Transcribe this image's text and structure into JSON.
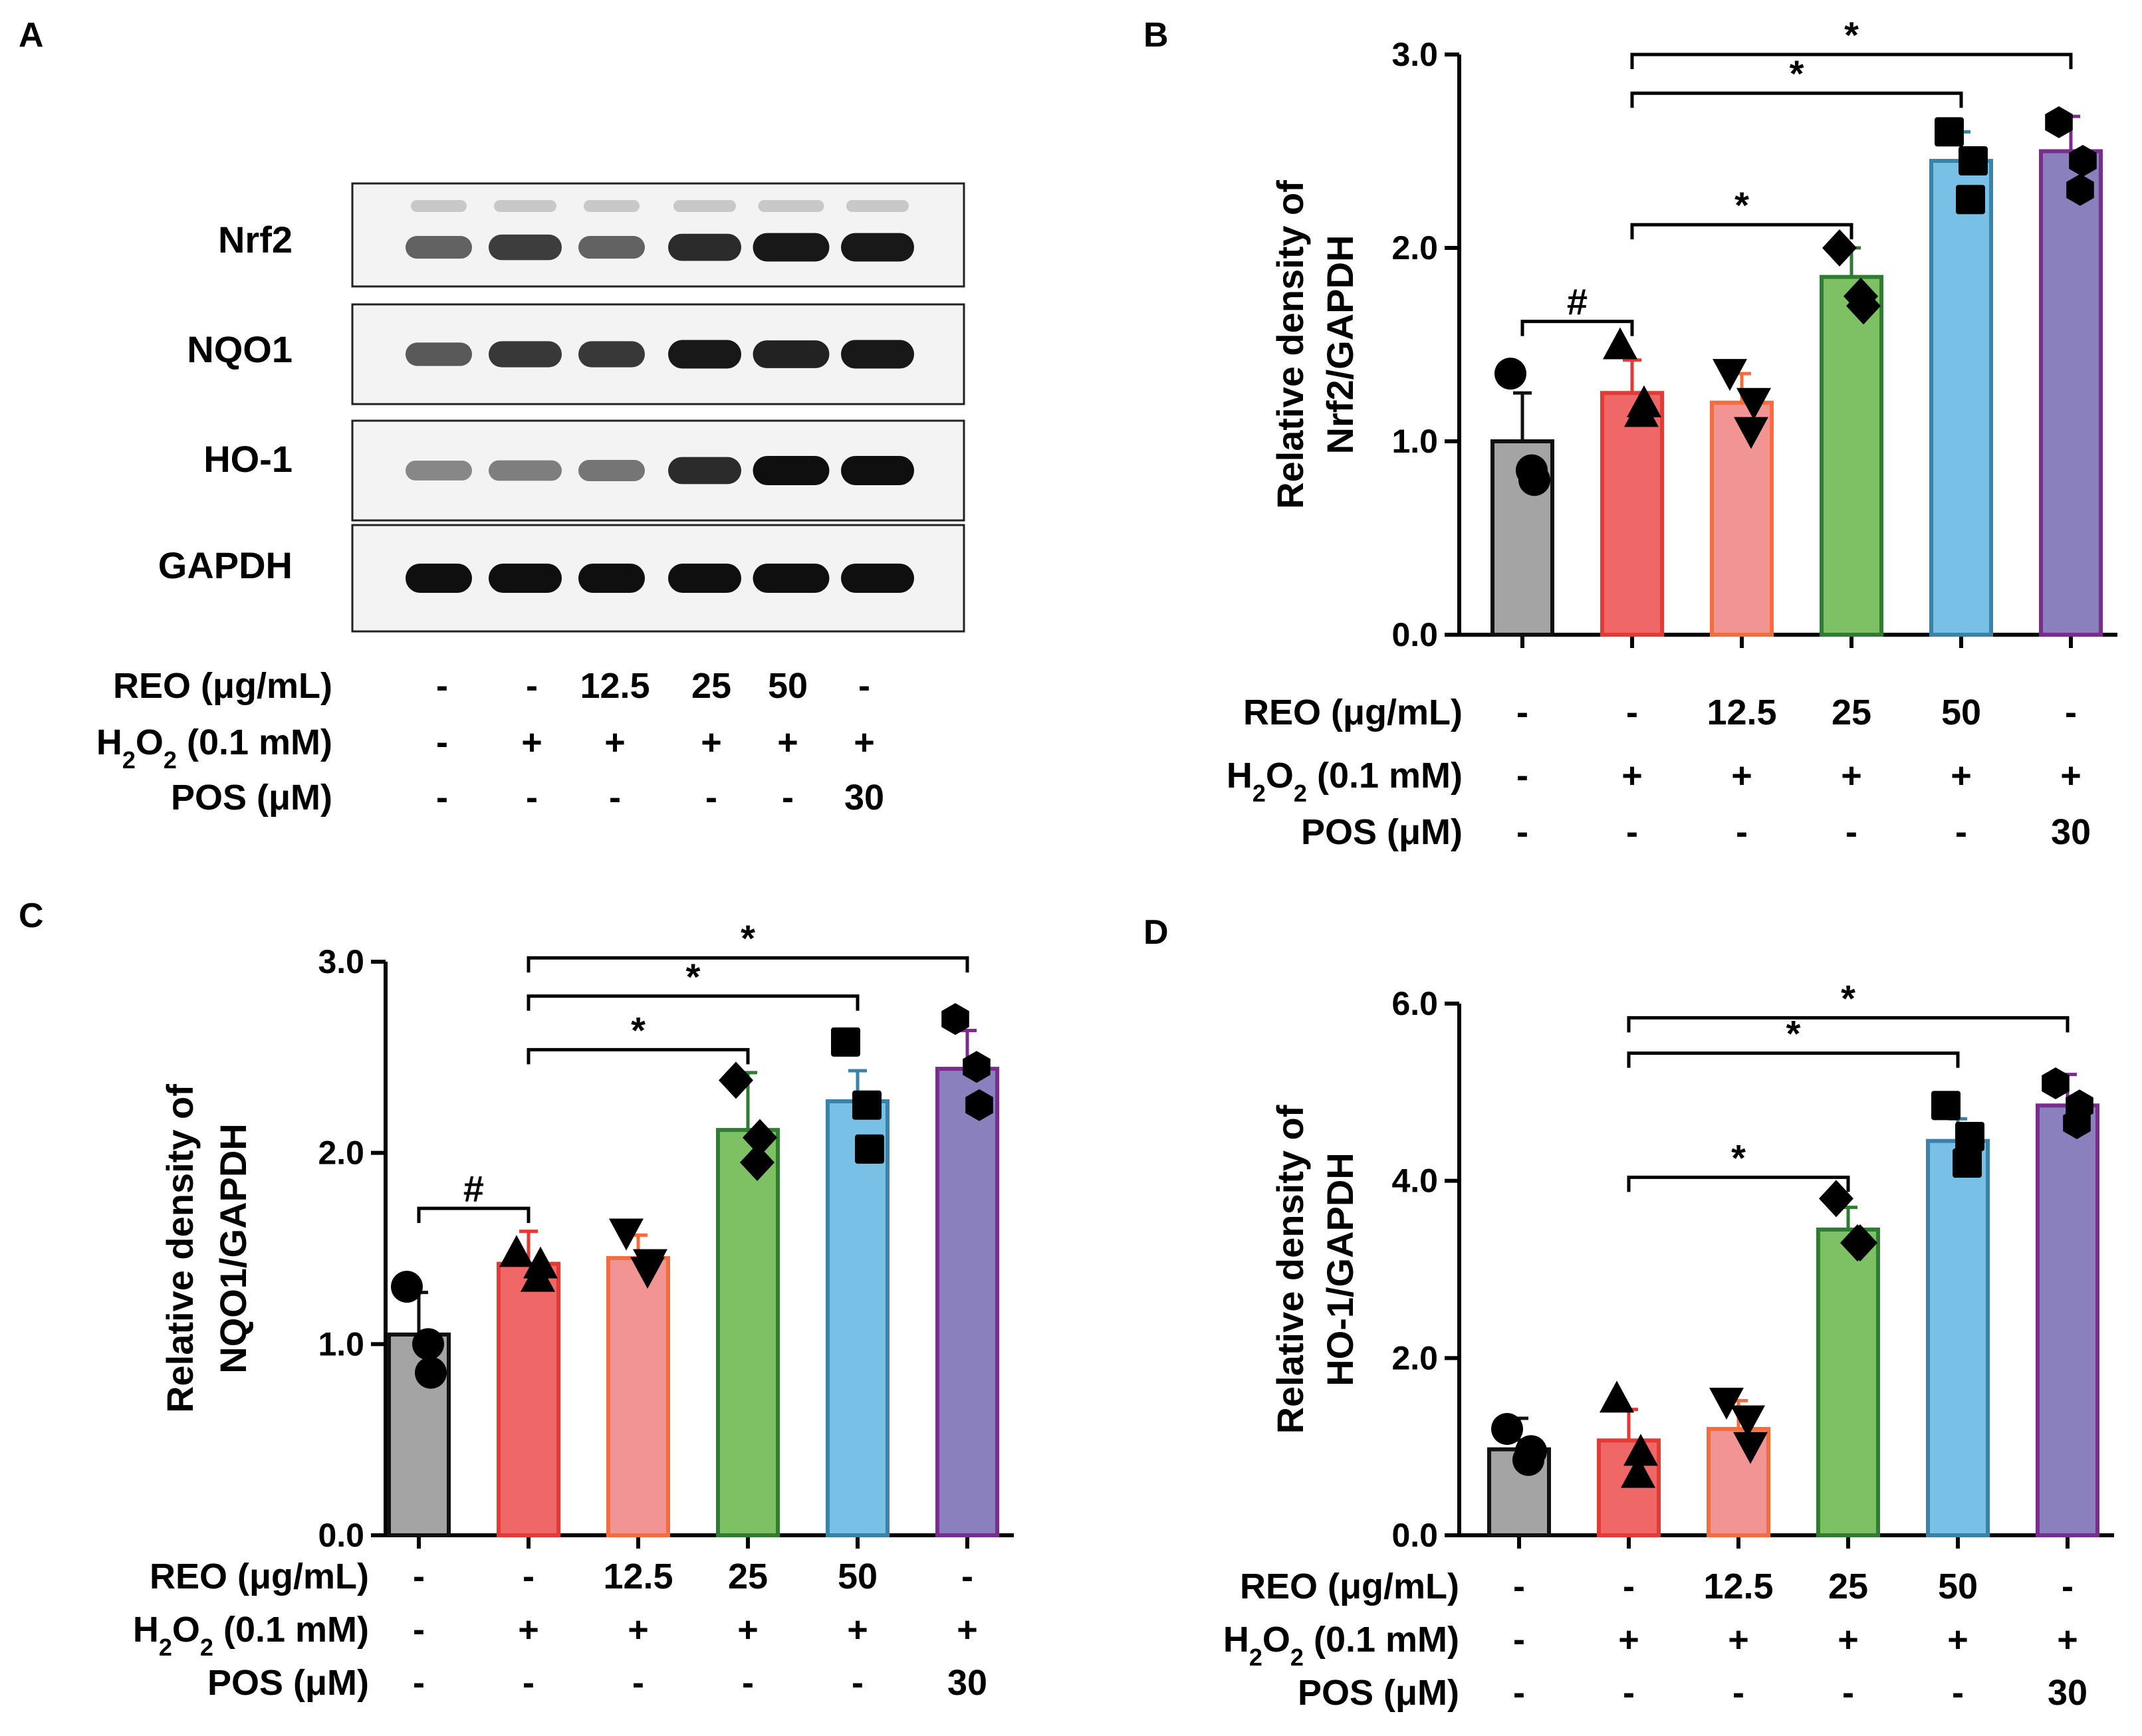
{
  "panel_letters": {
    "A": "A",
    "B": "B",
    "C": "C",
    "D": "D"
  },
  "blot": {
    "bands": [
      "Nrf2",
      "NQO1",
      "HO-1",
      "GAPDH"
    ],
    "lane_count": 6,
    "intensity": [
      [
        0.55,
        0.75,
        0.55,
        0.85,
        0.95,
        0.95
      ],
      [
        0.6,
        0.78,
        0.78,
        0.95,
        0.9,
        0.95
      ],
      [
        0.35,
        0.4,
        0.45,
        0.85,
        1.0,
        1.0
      ],
      [
        1.0,
        1.0,
        1.0,
        1.0,
        1.0,
        1.0
      ]
    ]
  },
  "conditions": {
    "rows": [
      {
        "label": "REO (μg/mL)",
        "values": [
          "-",
          "-",
          "12.5",
          "25",
          "50",
          "-"
        ]
      },
      {
        "label_main": "H",
        "label_sub": "2",
        "label_mid": "O",
        "label_sub2": "2",
        "label_tail": " (0.1 mM)",
        "values": [
          "-",
          "+",
          "+",
          "+",
          "+",
          "+"
        ]
      },
      {
        "label": "POS (μM)",
        "values": [
          "-",
          "-",
          "-",
          "-",
          "-",
          "30"
        ]
      }
    ]
  },
  "chart_data": [
    {
      "panel": "B",
      "type": "bar",
      "ylabel_line1": "Relative density of",
      "ylabel_line2": "Nrf2/GAPDH",
      "ylim": [
        0,
        3.0
      ],
      "yticks": [
        "0.0",
        "1.0",
        "2.0",
        "3.0"
      ],
      "ytick_values": [
        0,
        1,
        2,
        3
      ],
      "values": [
        1.0,
        1.25,
        1.2,
        1.85,
        2.45,
        2.5
      ],
      "errors": [
        0.25,
        0.17,
        0.15,
        0.15,
        0.15,
        0.18
      ],
      "points": [
        [
          1.35,
          0.85,
          0.8
        ],
        [
          1.5,
          1.15,
          1.2
        ],
        [
          1.35,
          1.05,
          1.2
        ],
        [
          2.0,
          1.75,
          1.7
        ],
        [
          2.6,
          2.25,
          2.45
        ],
        [
          2.65,
          2.3,
          2.45
        ]
      ],
      "markers": [
        "circle",
        "triangle-up",
        "triangle-down",
        "diamond",
        "square",
        "hexagon"
      ],
      "brackets": [
        {
          "from": 0,
          "to": 1,
          "label": "#"
        },
        {
          "from": 1,
          "to": 3,
          "label": "*"
        },
        {
          "from": 1,
          "to": 4,
          "label": "*"
        },
        {
          "from": 1,
          "to": 5,
          "label": "*"
        }
      ]
    },
    {
      "panel": "C",
      "type": "bar",
      "ylabel_line1": "Relative density of",
      "ylabel_line2": "NQO1/GAPDH",
      "ylim": [
        0,
        3.0
      ],
      "yticks": [
        "0.0",
        "1.0",
        "2.0",
        "3.0"
      ],
      "ytick_values": [
        0,
        1,
        2,
        3
      ],
      "values": [
        1.05,
        1.42,
        1.45,
        2.12,
        2.27,
        2.44
      ],
      "errors": [
        0.22,
        0.17,
        0.12,
        0.3,
        0.16,
        0.2
      ],
      "points": [
        [
          1.3,
          1.0,
          0.85
        ],
        [
          1.48,
          1.35,
          1.42
        ],
        [
          1.58,
          1.38,
          1.42
        ],
        [
          2.38,
          1.95,
          2.08
        ],
        [
          2.58,
          2.25,
          2.02
        ],
        [
          2.7,
          2.45,
          2.25
        ]
      ],
      "markers": [
        "circle",
        "triangle-up",
        "triangle-down",
        "diamond",
        "square",
        "hexagon"
      ],
      "brackets": [
        {
          "from": 0,
          "to": 1,
          "label": "#"
        },
        {
          "from": 1,
          "to": 3,
          "label": "*"
        },
        {
          "from": 1,
          "to": 4,
          "label": "*"
        },
        {
          "from": 1,
          "to": 5,
          "label": "*"
        }
      ]
    },
    {
      "panel": "D",
      "type": "bar",
      "ylabel_line1": "Relative density of",
      "ylabel_line2": "HO-1/GAPDH",
      "ylim": [
        0,
        6.0
      ],
      "yticks": [
        "0.0",
        "2.0",
        "4.0",
        "6.0"
      ],
      "ytick_values": [
        0,
        2,
        4,
        6
      ],
      "values": [
        0.97,
        1.07,
        1.2,
        3.45,
        4.45,
        4.85
      ],
      "errors": [
        0.35,
        0.35,
        0.32,
        0.25,
        0.25,
        0.35
      ],
      "points": [
        [
          1.2,
          0.85,
          0.95
        ],
        [
          1.55,
          0.7,
          0.95
        ],
        [
          1.5,
          1.3,
          1.0
        ],
        [
          3.8,
          3.3,
          3.3
        ],
        [
          4.85,
          4.2,
          4.5
        ],
        [
          5.1,
          4.65,
          4.85
        ]
      ],
      "markers": [
        "circle",
        "triangle-up",
        "triangle-down",
        "diamond",
        "square",
        "hexagon"
      ],
      "brackets": [
        {
          "from": 1,
          "to": 3,
          "label": "*"
        },
        {
          "from": 1,
          "to": 4,
          "label": "*"
        },
        {
          "from": 1,
          "to": 5,
          "label": "*"
        }
      ]
    }
  ],
  "colors": {
    "fills": [
      "#a4a4a4",
      "#ef6767",
      "#f39494",
      "#7dc164",
      "#79c0e6",
      "#8a80bd"
    ],
    "strokes": [
      "#111111",
      "#e33a36",
      "#f36d3e",
      "#2e7d32",
      "#3a82a8",
      "#7b2c8f"
    ]
  }
}
